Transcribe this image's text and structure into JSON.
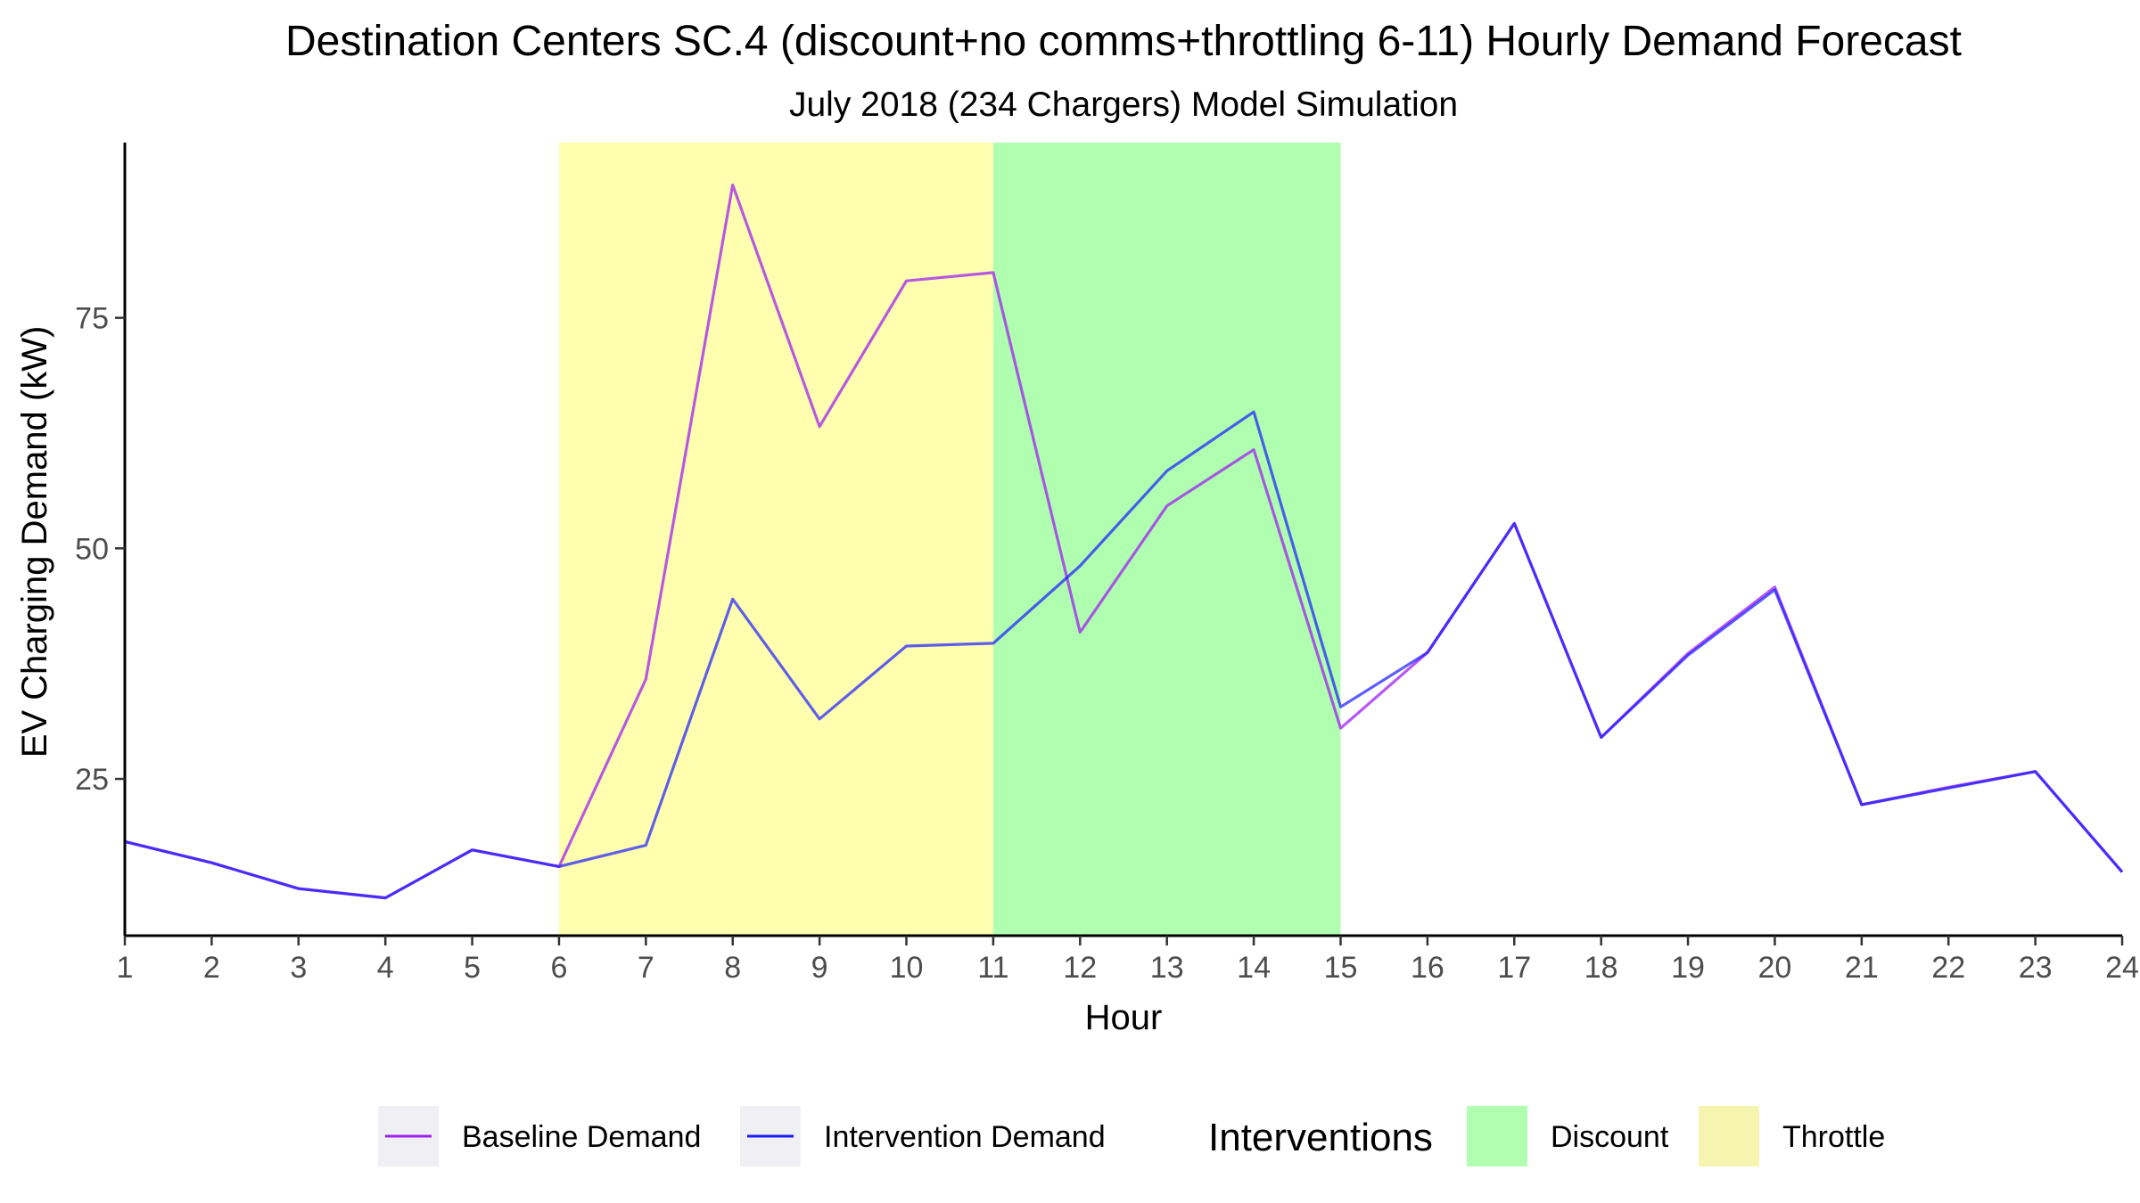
{
  "chart_data": {
    "type": "line",
    "title": "Destination Centers SC.4 (discount+no comms+throttling 6-11) Hourly Demand Forecast",
    "subtitle": "July 2018 (234 Chargers) Model Simulation",
    "xlabel": "Hour",
    "ylabel": "EV Charging Demand (kW)",
    "x": [
      1,
      2,
      3,
      4,
      5,
      6,
      7,
      8,
      9,
      10,
      11,
      12,
      13,
      14,
      15,
      16,
      17,
      18,
      19,
      20,
      21,
      22,
      23,
      24
    ],
    "xlim": [
      1,
      24
    ],
    "ylim": [
      8,
      94
    ],
    "y_ticks": [
      25,
      50,
      75
    ],
    "grid": false,
    "series": [
      {
        "name": "Baseline Demand",
        "color": "#a020f0",
        "values": [
          18.2,
          15.9,
          13.1,
          12.1,
          17.3,
          15.5,
          35.8,
          89.4,
          63.2,
          79.0,
          79.9,
          40.9,
          54.6,
          60.7,
          30.5,
          38.7,
          52.7,
          29.5,
          38.6,
          45.8,
          22.2,
          24.1,
          25.8,
          14.9
        ]
      },
      {
        "name": "Intervention Demand",
        "color": "#1a1aff",
        "values": [
          18.2,
          15.9,
          13.1,
          12.1,
          17.3,
          15.5,
          17.8,
          44.5,
          31.5,
          39.4,
          39.7,
          48.1,
          58.4,
          64.8,
          32.8,
          38.7,
          52.7,
          29.5,
          38.4,
          45.5,
          22.2,
          24.0,
          25.8,
          14.9
        ]
      }
    ],
    "regions": [
      {
        "name": "Throttle",
        "from": 6,
        "to": 11,
        "color": "#ffffb0"
      },
      {
        "name": "Discount",
        "from": 11,
        "to": 15,
        "color": "#b0ffb0"
      }
    ],
    "legend": {
      "position": "bottom",
      "interventions_title": "Interventions",
      "line_entries": [
        {
          "label": "Baseline Demand",
          "color": "#a020f0"
        },
        {
          "label": "Intervention Demand",
          "color": "#1a1aff"
        }
      ],
      "fill_entries": [
        {
          "label": "Discount",
          "color": "#b0ffb0"
        },
        {
          "label": "Throttle",
          "color": "#f5f5b0"
        }
      ]
    }
  }
}
